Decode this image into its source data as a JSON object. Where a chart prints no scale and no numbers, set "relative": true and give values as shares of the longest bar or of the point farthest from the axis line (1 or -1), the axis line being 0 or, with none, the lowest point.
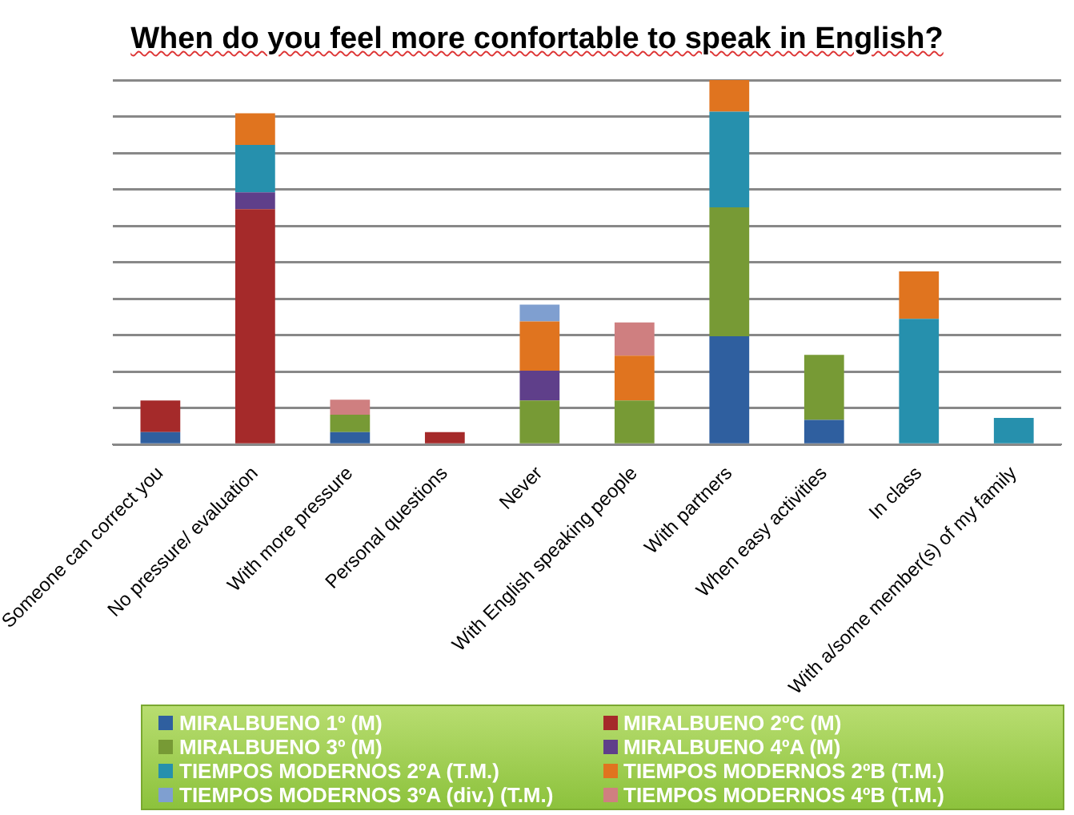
{
  "chart_data": {
    "type": "bar",
    "title": "When do you feel more confortable to speak in English?",
    "stacked": true,
    "relative": true,
    "grid": "y",
    "legend": "bottom",
    "categories": [
      "Someone can correct you",
      "No pressure/ evaluation",
      "With more pressure",
      "Personal questions",
      "Never",
      "With English speaking people",
      "With partners",
      "When easy activities",
      "In class",
      "With a/some member(s) of my family"
    ],
    "series": [
      {
        "name": "MIRALBUENO 1º (M)",
        "color": "#2f5f9f",
        "values": [
          0.034,
          null,
          0.034,
          null,
          null,
          null,
          0.297,
          0.068,
          null,
          null
        ]
      },
      {
        "name": "MIRALBUENO 2ºC (M)",
        "color": "#a52a2a",
        "values": [
          0.087,
          0.646,
          null,
          0.034,
          null,
          null,
          null,
          null,
          null,
          null
        ]
      },
      {
        "name": "MIRALBUENO 3º (M)",
        "color": "#779a35",
        "values": [
          null,
          null,
          0.048,
          null,
          0.121,
          0.121,
          0.354,
          0.178,
          null,
          null
        ]
      },
      {
        "name": "MIRALBUENO 4ºA (M)",
        "color": "#5f3f8a",
        "values": [
          null,
          0.046,
          null,
          null,
          0.082,
          null,
          null,
          null,
          null,
          null
        ]
      },
      {
        "name": "TIEMPOS MODERNOS 2ºA (T.M.)",
        "color": "#2690ad",
        "values": [
          null,
          0.13,
          null,
          null,
          null,
          null,
          0.262,
          null,
          0.345,
          0.073
        ]
      },
      {
        "name": "TIEMPOS MODERNOS 2ºB (T.M.)",
        "color": "#e0741f",
        "values": [
          null,
          0.087,
          null,
          null,
          0.135,
          0.123,
          0.087,
          null,
          0.13,
          null
        ]
      },
      {
        "name": "TIEMPOS MODERNOS 3ºA (div.) (T.M.)",
        "color": "#7f9fd0",
        "values": [
          null,
          null,
          null,
          null,
          0.046,
          null,
          null,
          null,
          null,
          null
        ]
      },
      {
        "name": "TIEMPOS MODERNOS 4ºB (T.M.)",
        "color": "#cf7f80",
        "values": [
          null,
          null,
          0.041,
          null,
          null,
          0.091,
          null,
          null,
          null,
          null
        ]
      }
    ]
  }
}
